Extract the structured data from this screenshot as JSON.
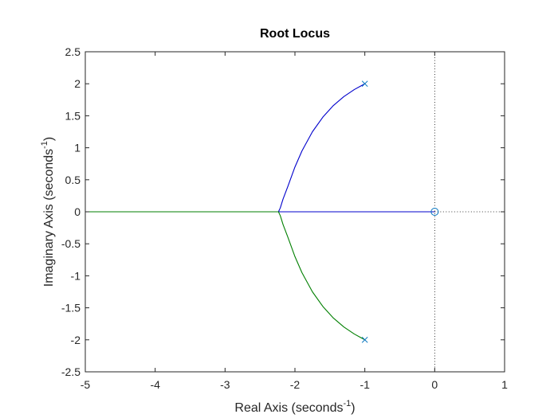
{
  "chart_data": {
    "type": "line",
    "title": "Root Locus",
    "xlabel": {
      "text": "Real Axis (seconds",
      "sup": "-1",
      "suffix": ")"
    },
    "ylabel": {
      "text": "Imaginary Axis (seconds",
      "sup": "-1",
      "suffix": ")"
    },
    "xlim": [
      -5,
      1
    ],
    "ylim": [
      -2.5,
      2.5
    ],
    "xticks": [
      -5,
      -4,
      -3,
      -2,
      -1,
      0,
      1
    ],
    "yticks": [
      -2.5,
      -2,
      -1.5,
      -1,
      -0.5,
      0,
      0.5,
      1,
      1.5,
      2,
      2.5
    ],
    "xtick_labels": [
      "-5",
      "-4",
      "-3",
      "-2",
      "-1",
      "0",
      "1"
    ],
    "ytick_labels": [
      "-2.5",
      "-2",
      "-1.5",
      "-1",
      "-0.5",
      "0",
      "0.5",
      "1",
      "1.5",
      "2",
      "2.5"
    ],
    "grid": false,
    "poles": [
      {
        "real": -1,
        "imag": 2
      },
      {
        "real": -1,
        "imag": -2
      }
    ],
    "zeros": [
      {
        "real": 0,
        "imag": 0
      }
    ],
    "series": [
      {
        "color": "#0000cc",
        "points": [
          [
            -1.0,
            2.0
          ],
          [
            -1.05,
            1.97
          ],
          [
            -1.15,
            1.91
          ],
          [
            -1.3,
            1.8
          ],
          [
            -1.45,
            1.66
          ],
          [
            -1.6,
            1.48
          ],
          [
            -1.75,
            1.25
          ],
          [
            -1.9,
            0.95
          ],
          [
            -2.0,
            0.7
          ],
          [
            -2.1,
            0.4
          ],
          [
            -2.17,
            0.2
          ],
          [
            -2.21,
            0.06
          ],
          [
            -2.236,
            0.0
          ],
          [
            -1.6,
            0.0
          ],
          [
            -1.0,
            0.0
          ],
          [
            -0.5,
            0.0
          ],
          [
            0.0,
            0.0
          ]
        ]
      },
      {
        "color": "#007f00",
        "points": [
          [
            -1.0,
            -2.0
          ],
          [
            -1.05,
            -1.97
          ],
          [
            -1.15,
            -1.91
          ],
          [
            -1.3,
            -1.8
          ],
          [
            -1.45,
            -1.66
          ],
          [
            -1.6,
            -1.48
          ],
          [
            -1.75,
            -1.25
          ],
          [
            -1.9,
            -0.95
          ],
          [
            -2.0,
            -0.7
          ],
          [
            -2.1,
            -0.4
          ],
          [
            -2.17,
            -0.2
          ],
          [
            -2.21,
            -0.06
          ],
          [
            -2.236,
            0.0
          ],
          [
            -3.0,
            0.0
          ],
          [
            -4.0,
            0.0
          ],
          [
            -5.0,
            0.0
          ]
        ]
      }
    ],
    "reference_lines": {
      "vertical_at": 0,
      "horizontal_at": 0,
      "style": "dotted",
      "color": "#000000"
    },
    "marker_color": "#0072bd",
    "axis_color": "#262626"
  }
}
